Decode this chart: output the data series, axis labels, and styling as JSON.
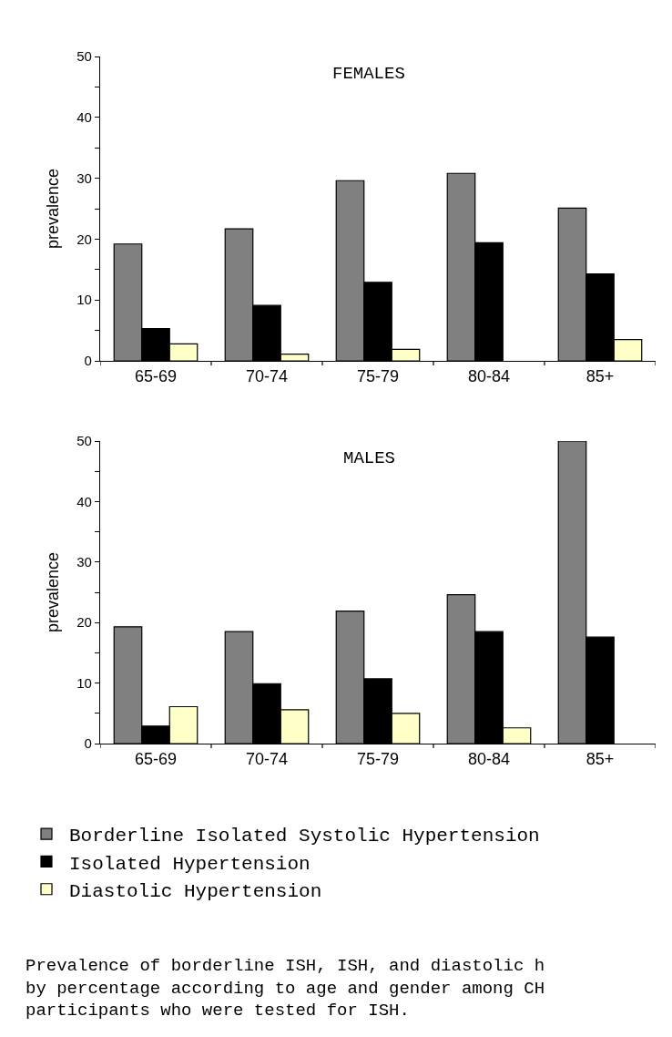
{
  "chart_data": [
    {
      "type": "bar",
      "title": "FEMALES",
      "ylabel": "prevalence",
      "categories": [
        "65-69",
        "70-74",
        "75-79",
        "80-84",
        "85+"
      ],
      "series": [
        {
          "color": "#808080",
          "values": [
            19.2,
            21.7,
            29.6,
            30.8,
            25.1
          ]
        },
        {
          "color": "#000000",
          "values": [
            5.3,
            9.1,
            12.9,
            19.4,
            14.3
          ]
        },
        {
          "color": "#ffffc8",
          "values": [
            2.8,
            1.1,
            1.9,
            null,
            3.5
          ]
        }
      ],
      "ylim": [
        0,
        50
      ],
      "yticks": [
        0,
        {
          "value": 5,
          "label": null
        },
        10,
        {
          "value": 15,
          "label": null
        },
        20,
        {
          "value": 25,
          "label": null
        },
        30,
        {
          "value": 35,
          "label": null
        },
        40,
        {
          "value": 45,
          "label": null
        },
        50
      ]
    },
    {
      "type": "bar",
      "title": "MALES",
      "ylabel": "prevalence",
      "categories": [
        "65-69",
        "70-74",
        "75-79",
        "80-84",
        "85+"
      ],
      "series": [
        {
          "name": "Borderline Isolated Systolic Hypertension",
          "color": "#808080",
          "values": [
            19.3,
            18.5,
            21.9,
            24.6,
            50
          ]
        },
        {
          "name": "Isolated Hypertension",
          "color": "#000000",
          "values": [
            2.9,
            9.9,
            10.7,
            18.5,
            17.6
          ]
        },
        {
          "name": "Diastolic Hypertension",
          "color": "#ffffc8",
          "values": [
            6.1,
            5.6,
            5.0,
            2.6,
            null
          ]
        }
      ],
      "ylim": [
        0,
        50
      ],
      "yticks": [
        0,
        {
          "value": 5,
          "label": null
        },
        10,
        {
          "value": 15,
          "label": null
        },
        20,
        {
          "value": 25,
          "label": null
        },
        30,
        {
          "value": 35,
          "label": null
        },
        40,
        {
          "value": 45,
          "label": null
        },
        50
      ],
      "legend": "bottom",
      "annotations": [
        "Prevalence of borderline ISH, ISH, and diastolic h\nby percentage according to age and gender among CH\nparticipants who were tested for ISH."
      ]
    }
  ]
}
